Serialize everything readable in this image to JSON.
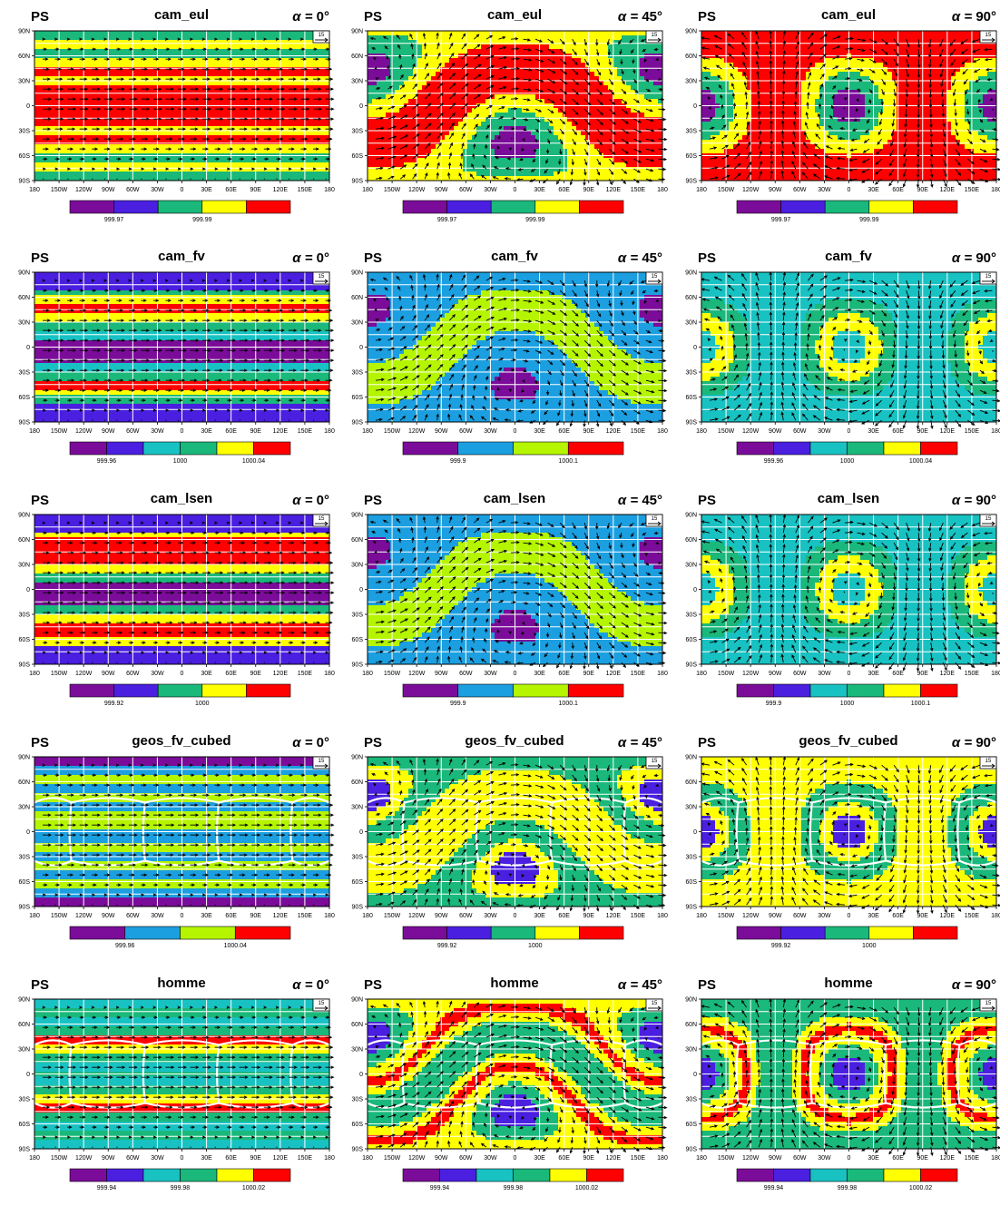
{
  "figure": {
    "variable_label": "PS",
    "alpha_symbol": "α =",
    "reference_vector_label": "15",
    "rows": [
      {
        "model": "cam_eul",
        "colorbar": {
          "colors": [
            "#7B0C99",
            "#4A1FE0",
            "#1AB87A",
            "#FFFF00",
            "#FF0000"
          ],
          "labels": [
            "999.97",
            "999.99"
          ],
          "label_after_segments": [
            1,
            3
          ]
        }
      },
      {
        "model": "cam_fv",
        "colorbar": {
          "colors": [
            "#7B0C99",
            "#4A1FE0",
            "#18C2C2",
            "#1AB87A",
            "#FFFF00",
            "#FF0000"
          ],
          "labels": [
            "999.96",
            "1000",
            "1000.04"
          ],
          "label_after_segments": [
            1,
            3,
            5
          ]
        },
        "colorbar_45": {
          "colors": [
            "#7B0C99",
            "#1B9FE0",
            "#B5F500",
            "#FF0000"
          ],
          "labels": [
            "999.9",
            "1000.1"
          ],
          "label_after_segments": [
            1,
            3
          ]
        }
      },
      {
        "model": "cam_lsen",
        "colorbar": {
          "colors": [
            "#7B0C99",
            "#4A1FE0",
            "#1AB87A",
            "#FFFF00",
            "#FF0000"
          ],
          "labels": [
            "999.92",
            "1000"
          ],
          "label_after_segments": [
            1,
            3
          ]
        },
        "colorbar_45": {
          "colors": [
            "#7B0C99",
            "#1B9FE0",
            "#B5F500",
            "#FF0000"
          ],
          "labels": [
            "999.9",
            "1000.1"
          ],
          "label_after_segments": [
            1,
            3
          ]
        },
        "colorbar_90": {
          "colors": [
            "#7B0C99",
            "#4A1FE0",
            "#18C2C2",
            "#1AB87A",
            "#FFFF00",
            "#FF0000"
          ],
          "labels": [
            "999.9",
            "1000",
            "1000.1"
          ],
          "label_after_segments": [
            1,
            3,
            5
          ]
        }
      },
      {
        "model": "geos_fv_cubed",
        "colorbar": {
          "colors": [
            "#7B0C99",
            "#1B9FE0",
            "#B5F500",
            "#FF0000"
          ],
          "labels": [
            "999.96",
            "1000.04"
          ],
          "label_after_segments": [
            1,
            3
          ]
        },
        "colorbar_45": {
          "colors": [
            "#7B0C99",
            "#4A1FE0",
            "#1AB87A",
            "#FFFF00",
            "#FF0000"
          ],
          "labels": [
            "999.92",
            "1000"
          ],
          "label_after_segments": [
            1,
            3
          ]
        },
        "colorbar_90": {
          "colors": [
            "#7B0C99",
            "#4A1FE0",
            "#1AB87A",
            "#FFFF00",
            "#FF0000"
          ],
          "labels": [
            "999.92",
            "1000"
          ],
          "label_after_segments": [
            1,
            3
          ]
        }
      },
      {
        "model": "homme",
        "colorbar": {
          "colors": [
            "#7B0C99",
            "#4A1FE0",
            "#18C2C2",
            "#1AB87A",
            "#FFFF00",
            "#FF0000"
          ],
          "labels": [
            "999.94",
            "999.98",
            "1000.02"
          ],
          "label_after_segments": [
            1,
            3,
            5
          ]
        }
      }
    ],
    "alphas": [
      "0°",
      "45°",
      "90°"
    ]
  },
  "chart_data": {
    "type": "heatmap",
    "description_of_content": "Surface pressure (PS) with wind vectors for five dynamical cores and three rotation angles alpha",
    "x_ticks": [
      "180",
      "150W",
      "120W",
      "90W",
      "60W",
      "30W",
      "0",
      "30E",
      "60E",
      "90E",
      "120E",
      "150E",
      "180"
    ],
    "y_ticks": [
      "90N",
      "60N",
      "30N",
      "0",
      "30S",
      "60S",
      "90S"
    ],
    "xlim": [
      -180,
      180
    ],
    "ylim": [
      -90,
      90
    ],
    "grid": true,
    "panels": [
      {
        "row": 0,
        "model": "cam_eul",
        "alpha": "0°",
        "colorbar_labels": [
          "999.97",
          "999.99"
        ]
      },
      {
        "row": 0,
        "model": "cam_eul",
        "alpha": "45°",
        "colorbar_labels": [
          "999.97",
          "999.99"
        ]
      },
      {
        "row": 0,
        "model": "cam_eul",
        "alpha": "90°",
        "colorbar_labels": [
          "999.97",
          "999.99"
        ]
      },
      {
        "row": 1,
        "model": "cam_fv",
        "alpha": "0°",
        "colorbar_labels": [
          "999.96",
          "1000",
          "1000.04"
        ]
      },
      {
        "row": 1,
        "model": "cam_fv",
        "alpha": "45°",
        "colorbar_labels": [
          "999.9",
          "1000.1"
        ]
      },
      {
        "row": 1,
        "model": "cam_fv",
        "alpha": "90°",
        "colorbar_labels": [
          "999.96",
          "1000",
          "1000.04"
        ]
      },
      {
        "row": 2,
        "model": "cam_lsen",
        "alpha": "0°",
        "colorbar_labels": [
          "999.92",
          "1000"
        ]
      },
      {
        "row": 2,
        "model": "cam_lsen",
        "alpha": "45°",
        "colorbar_labels": [
          "999.9",
          "1000.1"
        ]
      },
      {
        "row": 2,
        "model": "cam_lsen",
        "alpha": "90°",
        "colorbar_labels": [
          "999.9",
          "1000",
          "1000.1"
        ]
      },
      {
        "row": 3,
        "model": "geos_fv_cubed",
        "alpha": "0°",
        "colorbar_labels": [
          "999.96",
          "1000.04"
        ]
      },
      {
        "row": 3,
        "model": "geos_fv_cubed",
        "alpha": "45°",
        "colorbar_labels": [
          "999.92",
          "1000"
        ]
      },
      {
        "row": 3,
        "model": "geos_fv_cubed",
        "alpha": "90°",
        "colorbar_labels": [
          "999.92",
          "1000"
        ]
      },
      {
        "row": 4,
        "model": "homme",
        "alpha": "0°",
        "colorbar_labels": [
          "999.94",
          "999.98",
          "1000.02"
        ]
      },
      {
        "row": 4,
        "model": "homme",
        "alpha": "45°",
        "colorbar_labels": [
          "999.94",
          "999.98",
          "1000.02"
        ]
      },
      {
        "row": 4,
        "model": "homme",
        "alpha": "90°",
        "colorbar_labels": [
          "999.94",
          "999.98",
          "1000.02"
        ]
      }
    ]
  }
}
